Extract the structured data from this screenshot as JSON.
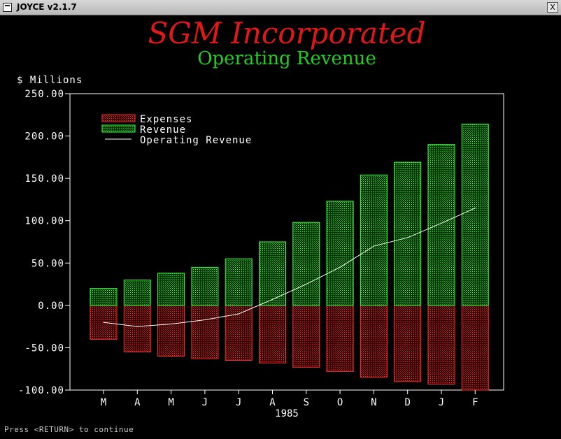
{
  "window": {
    "title": "JOYCE v2.1.7",
    "close_label": "X"
  },
  "status_text": "Press <RETURN> to continue",
  "colors": {
    "expenses": "#ff3030",
    "revenue": "#40ff40",
    "operating": "#ffffff",
    "title": "#e01818",
    "subtitle": "#20d020"
  },
  "chart_data": {
    "type": "bar",
    "title": "SGM Incorporated",
    "subtitle": "Operating Revenue",
    "ylabel": "$ Millions",
    "xlabel": "1985",
    "ylim": [
      -100,
      250
    ],
    "yticks": [
      250,
      200,
      150,
      100,
      50,
      0,
      -50,
      -100
    ],
    "ytick_labels": [
      "250.00",
      "200.00",
      "150.00",
      "100.00",
      "50.00",
      "0.00",
      "-50.00",
      "-100.00"
    ],
    "categories": [
      "M",
      "A",
      "M",
      "J",
      "J",
      "A",
      "S",
      "O",
      "N",
      "D",
      "J",
      "F"
    ],
    "legend_position": "top-left",
    "series": [
      {
        "name": "Expenses",
        "kind": "bar",
        "values": [
          -40,
          -55,
          -60,
          -63,
          -65,
          -68,
          -73,
          -78,
          -85,
          -90,
          -93,
          -100
        ]
      },
      {
        "name": "Revenue",
        "kind": "bar",
        "values": [
          20,
          30,
          38,
          45,
          55,
          75,
          98,
          123,
          154,
          169,
          190,
          214
        ]
      },
      {
        "name": "Operating Revenue",
        "kind": "line",
        "values": [
          -20,
          -25,
          -22,
          -17,
          -10,
          7,
          25,
          45,
          70,
          80,
          97,
          115
        ]
      }
    ]
  }
}
